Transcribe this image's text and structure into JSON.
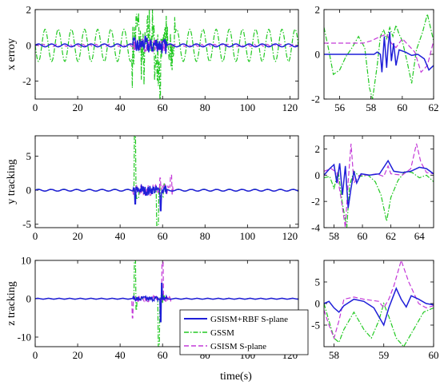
{
  "xlabel": "time(s)",
  "legend": {
    "placement": "bottom-center",
    "entries": [
      {
        "label": "GSISM+RBF S-plane",
        "color": "#1f1fd8",
        "dash": "solid"
      },
      {
        "label": "GSSM",
        "color": "#22c922",
        "dash": "dashdot"
      },
      {
        "label": "GSISM S-plane",
        "color": "#c43ad8",
        "dash": "dashed"
      }
    ]
  },
  "chart_data": [
    {
      "id": "x-main",
      "type": "line",
      "ylabel": "x erroy",
      "xlim": [
        0,
        124
      ],
      "ylim": [
        -3,
        2
      ],
      "xticks": [
        0,
        20,
        40,
        60,
        80,
        100,
        120
      ],
      "yticks": [
        -2,
        0,
        2
      ],
      "series_desc": [
        {
          "name": "GSSM",
          "pattern": "sine",
          "amplitude": 0.9,
          "period": 6.2,
          "burst": [
            46,
            66
          ]
        },
        {
          "name": "GSISM+RBF S-plane",
          "pattern": "small-oscillation",
          "amplitude": 0.1,
          "burst": [
            46,
            62
          ]
        },
        {
          "name": "GSISM S-plane",
          "pattern": "small-oscillation",
          "amplitude": 0.08,
          "burst": [
            46,
            62
          ]
        }
      ]
    },
    {
      "id": "x-zoom",
      "type": "line",
      "ylabel": "",
      "xlim": [
        55,
        62
      ],
      "ylim": [
        -2,
        2
      ],
      "xticks": [
        56,
        58,
        60,
        62
      ],
      "yticks": [
        -2,
        0,
        2
      ]
    },
    {
      "id": "y-main",
      "type": "line",
      "ylabel": "y tracking",
      "xlim": [
        0,
        124
      ],
      "ylim": [
        -5.5,
        8
      ],
      "xticks": [
        0,
        20,
        40,
        60,
        80,
        100,
        120
      ],
      "yticks": [
        -5,
        0,
        5
      ],
      "series_desc": [
        {
          "name": "GSSM",
          "spikes": [
            [
              47,
              8
            ],
            [
              57.5,
              -5
            ]
          ]
        },
        {
          "name": "GSISM S-plane",
          "spikes": [
            [
              59,
              1.5
            ],
            [
              64,
              2
            ]
          ]
        },
        {
          "name": "GSISM+RBF S-plane",
          "spikes": [
            [
              47,
              -2
            ],
            [
              59,
              -3
            ]
          ]
        }
      ]
    },
    {
      "id": "y-zoom",
      "type": "line",
      "ylabel": "",
      "xlim": [
        57.3,
        65
      ],
      "ylim": [
        -4,
        3
      ],
      "xticks": [
        58,
        60,
        62,
        64
      ],
      "yticks": [
        -4,
        -2,
        0,
        2
      ]
    },
    {
      "id": "z-main",
      "type": "line",
      "ylabel": "z tracking",
      "xlim": [
        0,
        124
      ],
      "ylim": [
        -12.5,
        10
      ],
      "xticks": [
        0,
        20,
        40,
        60,
        80,
        100,
        120
      ],
      "yticks": [
        -10,
        0,
        10
      ],
      "series_desc": [
        {
          "name": "GSSM",
          "spikes": [
            [
              47,
              10
            ],
            [
              58,
              -12
            ]
          ]
        },
        {
          "name": "GSISM S-plane",
          "spikes": [
            [
              60,
              10
            ]
          ]
        },
        {
          "name": "GSISM+RBF S-plane",
          "spikes": [
            [
              59,
              -6
            ]
          ]
        }
      ]
    },
    {
      "id": "z-zoom",
      "type": "line",
      "ylabel": "",
      "xlim": [
        57.8,
        60
      ],
      "ylim": [
        -10,
        10
      ],
      "xticks": [
        58,
        59,
        60
      ],
      "yticks": [
        -5,
        0,
        5
      ]
    }
  ]
}
